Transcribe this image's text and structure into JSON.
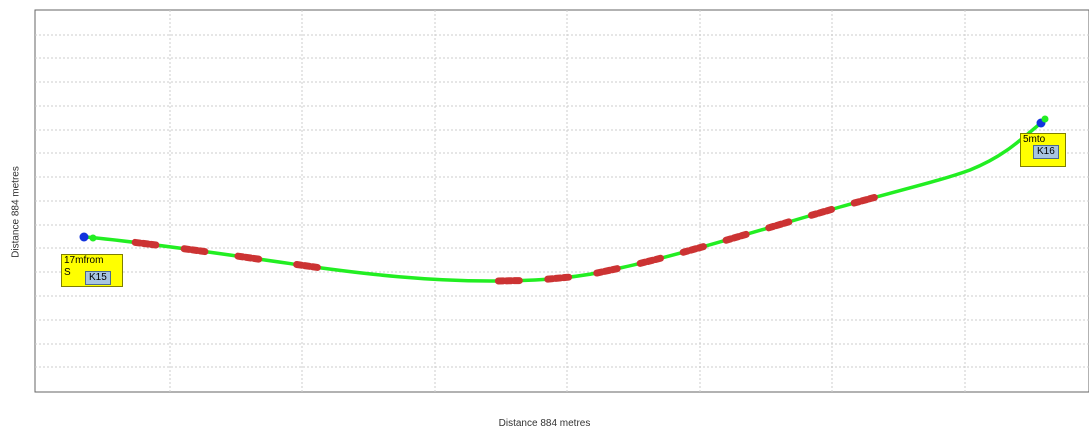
{
  "axes": {
    "xlabel": "Distance 884 metres",
    "ylabel": "Distance 884 metres"
  },
  "colors": {
    "route": "#22ee22",
    "dash": "#cc3333",
    "point_start": "#1133dd",
    "grid": "#cccccc",
    "tag_yellow": "#ffff00",
    "tag_blue": "#a7c4e0"
  },
  "markers": {
    "start": {
      "yellow_text": "17mfrom",
      "yellow_text2": "S",
      "id": "K15"
    },
    "end": {
      "yellow_text": "5mto",
      "id": "K16"
    }
  }
}
